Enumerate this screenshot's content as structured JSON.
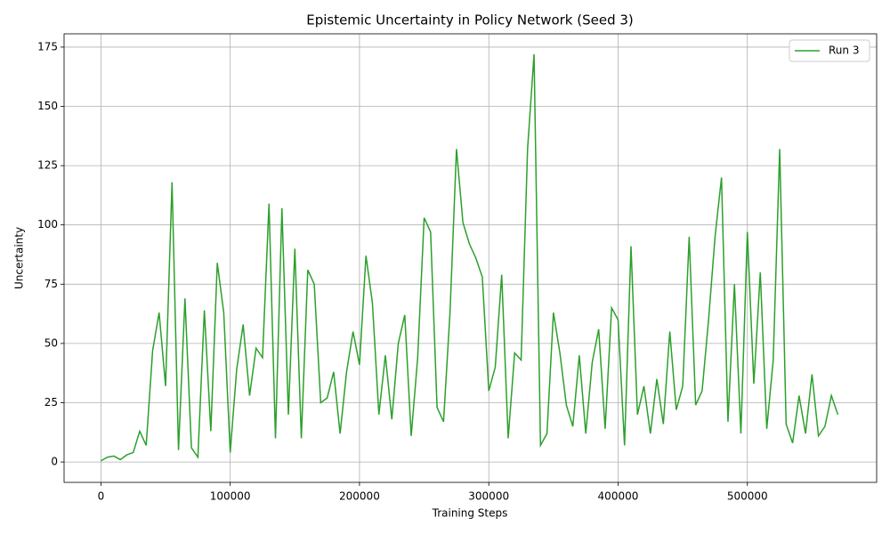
{
  "chart_data": {
    "type": "line",
    "title": "Epistemic Uncertainty in Policy Network (Seed 3)",
    "x_label": "Training Steps",
    "y_label": "Uncertainty",
    "x": [
      0,
      5000,
      10000,
      15000,
      20000,
      25000,
      30000,
      35000,
      40000,
      45000,
      50000,
      55000,
      60000,
      65000,
      70000,
      75000,
      80000,
      85000,
      90000,
      95000,
      100000,
      105000,
      110000,
      115000,
      120000,
      125000,
      130000,
      135000,
      140000,
      145000,
      150000,
      155000,
      160000,
      165000,
      170000,
      175000,
      180000,
      185000,
      190000,
      195000,
      200000,
      205000,
      210000,
      215000,
      220000,
      225000,
      230000,
      235000,
      240000,
      245000,
      250000,
      255000,
      260000,
      265000,
      270000,
      275000,
      280000,
      285000,
      290000,
      295000,
      300000,
      305000,
      310000,
      315000,
      320000,
      325000,
      330000,
      335000,
      340000,
      345000,
      350000,
      355000,
      360000,
      365000,
      370000,
      375000,
      380000,
      385000,
      390000,
      395000,
      400000,
      405000,
      410000,
      415000,
      420000,
      425000,
      430000,
      435000,
      440000,
      445000,
      450000,
      455000,
      460000,
      465000,
      470000,
      475000,
      480000,
      485000,
      490000,
      495000,
      500000,
      505000,
      510000,
      515000,
      520000,
      525000,
      530000,
      535000,
      540000,
      545000,
      550000,
      555000,
      560000,
      565000,
      570000
    ],
    "series": [
      {
        "name": "Run 3",
        "color": "#2ca02c",
        "values": [
          0.5,
          2,
          2.5,
          1,
          3,
          4,
          13,
          7,
          47,
          63,
          32,
          118,
          5,
          69,
          6,
          2,
          64,
          13,
          84,
          63,
          4,
          39,
          58,
          28,
          48,
          44,
          109,
          10,
          107,
          20,
          90,
          10,
          81,
          75,
          25,
          27,
          38,
          12,
          38,
          55,
          41,
          87,
          67,
          20,
          45,
          18,
          50,
          62,
          11,
          44,
          103,
          97,
          23,
          17,
          63,
          132,
          101,
          92,
          86,
          78,
          30,
          40,
          79,
          10,
          46,
          43,
          132,
          172,
          7,
          12,
          63,
          46,
          24,
          15,
          45,
          12,
          42,
          56,
          14,
          65,
          60,
          7,
          91,
          20,
          32,
          12,
          35,
          16,
          55,
          22,
          32,
          95,
          24,
          30,
          60,
          95,
          120,
          17,
          75,
          12,
          97,
          33,
          80,
          14,
          43,
          132,
          16,
          8,
          28,
          12,
          37,
          11,
          15,
          28,
          20
        ]
      }
    ],
    "xlim": [
      -28500,
      600000
    ],
    "ylim": [
      -8.6,
      180.6
    ],
    "xticks": [
      0,
      100000,
      200000,
      300000,
      400000,
      500000
    ],
    "yticks": [
      0,
      25,
      50,
      75,
      100,
      125,
      150,
      175
    ],
    "grid": true,
    "legend": "upper right"
  }
}
